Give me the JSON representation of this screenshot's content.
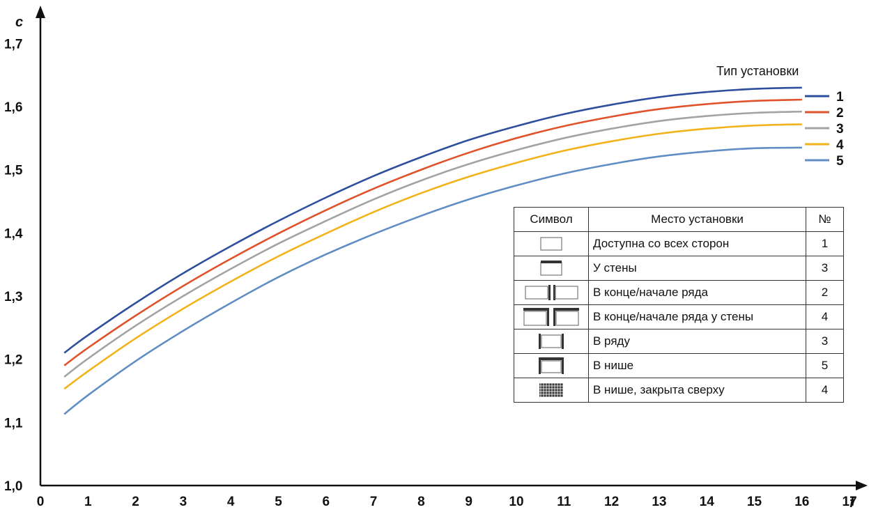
{
  "chart_data": {
    "type": "line",
    "xlabel": "f",
    "ylabel": "c",
    "xlim": [
      0,
      17
    ],
    "ylim": [
      1.0,
      1.75
    ],
    "x_ticks": [
      "0",
      "1",
      "2",
      "3",
      "4",
      "5",
      "6",
      "7",
      "8",
      "9",
      "10",
      "11",
      "12",
      "13",
      "14",
      "15",
      "16",
      "17"
    ],
    "y_ticks": [
      "1,0",
      "1,1",
      "1,2",
      "1,3",
      "1,4",
      "1,5",
      "1,6",
      "1,7"
    ],
    "grid": false,
    "legend_title": "Тип установки",
    "legend_position": "top-right",
    "x": [
      0.5,
      1,
      2,
      3,
      4,
      5,
      6,
      7,
      8,
      9,
      10,
      11,
      12,
      13,
      14,
      15,
      16
    ],
    "series": [
      {
        "name": "1",
        "color": "#2e4f9e",
        "values": [
          1.21,
          1.238,
          1.289,
          1.336,
          1.379,
          1.419,
          1.456,
          1.49,
          1.52,
          1.547,
          1.569,
          1.588,
          1.603,
          1.615,
          1.623,
          1.628,
          1.63
        ]
      },
      {
        "name": "2",
        "color": "#e0522a",
        "values": [
          1.19,
          1.218,
          1.269,
          1.316,
          1.359,
          1.399,
          1.436,
          1.47,
          1.5,
          1.527,
          1.55,
          1.569,
          1.584,
          1.596,
          1.604,
          1.609,
          1.611
        ]
      },
      {
        "name": "3",
        "color": "#a3a3a3",
        "values": [
          1.172,
          1.201,
          1.253,
          1.3,
          1.343,
          1.383,
          1.419,
          1.453,
          1.483,
          1.509,
          1.531,
          1.55,
          1.565,
          1.577,
          1.585,
          1.59,
          1.592
        ]
      },
      {
        "name": "4",
        "color": "#f2b31a",
        "values": [
          1.153,
          1.181,
          1.233,
          1.28,
          1.323,
          1.363,
          1.399,
          1.433,
          1.463,
          1.489,
          1.511,
          1.53,
          1.545,
          1.557,
          1.565,
          1.57,
          1.572
        ]
      },
      {
        "name": "5",
        "color": "#5f8dc4",
        "values": [
          1.113,
          1.143,
          1.197,
          1.245,
          1.289,
          1.33,
          1.366,
          1.398,
          1.427,
          1.453,
          1.475,
          1.494,
          1.509,
          1.521,
          1.529,
          1.534,
          1.535
        ]
      }
    ]
  },
  "table": {
    "headers": [
      "Символ",
      "Место установки",
      "№"
    ],
    "rows": [
      {
        "symbol": "free-standing-icon",
        "place": "Доступна со всех сторон",
        "num": "1"
      },
      {
        "symbol": "wall-icon",
        "place": "У стены",
        "num": "3"
      },
      {
        "symbol": "row-end-icon",
        "place": "В конце/начале ряда",
        "num": "2"
      },
      {
        "symbol": "row-end-wall-icon",
        "place": "В конце/начале ряда у стены",
        "num": "4"
      },
      {
        "symbol": "in-row-icon",
        "place": "В ряду",
        "num": "3"
      },
      {
        "symbol": "niche-icon",
        "place": "В нише",
        "num": "5"
      },
      {
        "symbol": "niche-covered-icon",
        "place": "В нише, закрыта сверху",
        "num": "4"
      }
    ]
  }
}
